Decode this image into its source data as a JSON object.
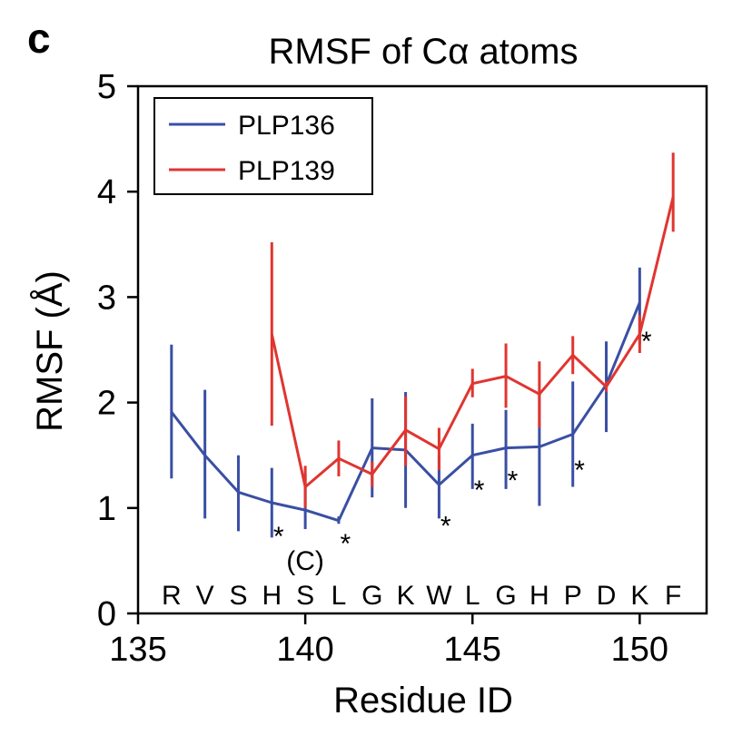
{
  "panel_label": "c",
  "chart_data": {
    "type": "line",
    "title": "RMSF of Cα atoms",
    "xlabel": "Residue ID",
    "ylabel": "RMSF (Å)",
    "xlim": [
      135,
      152
    ],
    "ylim": [
      0,
      5
    ],
    "x_ticks": [
      135,
      140,
      145,
      150
    ],
    "y_ticks": [
      0,
      1,
      2,
      3,
      4,
      5
    ],
    "grid": false,
    "legend_position": "top-left",
    "residues": [
      {
        "x": 136,
        "label": "R"
      },
      {
        "x": 137,
        "label": "V"
      },
      {
        "x": 138,
        "label": "S"
      },
      {
        "x": 139,
        "label": "H"
      },
      {
        "x": 140,
        "label": "S"
      },
      {
        "x": 141,
        "label": "L"
      },
      {
        "x": 142,
        "label": "G"
      },
      {
        "x": 143,
        "label": "K"
      },
      {
        "x": 144,
        "label": "W"
      },
      {
        "x": 145,
        "label": "L"
      },
      {
        "x": 146,
        "label": "G"
      },
      {
        "x": 147,
        "label": "H"
      },
      {
        "x": 148,
        "label": "P"
      },
      {
        "x": 149,
        "label": "D"
      },
      {
        "x": 150,
        "label": "K"
      },
      {
        "x": 151,
        "label": "F"
      }
    ],
    "residue_annotation": {
      "x": 140,
      "text": "(C)"
    },
    "series": [
      {
        "name": "PLP136",
        "color": "#3a4fa3",
        "x": [
          136,
          137,
          138,
          139,
          140,
          141,
          142,
          143,
          144,
          145,
          146,
          147,
          148,
          149,
          150
        ],
        "y": [
          1.91,
          1.5,
          1.15,
          1.05,
          0.98,
          0.88,
          1.57,
          1.55,
          1.22,
          1.5,
          1.57,
          1.58,
          1.7,
          2.17,
          2.95
        ],
        "err_low": [
          1.28,
          0.9,
          0.78,
          0.72,
          0.8,
          0.85,
          1.1,
          1.0,
          0.9,
          1.18,
          1.18,
          1.02,
          1.2,
          1.72,
          2.55
        ],
        "err_high": [
          2.55,
          2.12,
          1.5,
          1.38,
          1.32,
          0.92,
          2.04,
          2.1,
          1.5,
          1.8,
          1.93,
          2.1,
          2.2,
          2.58,
          3.28
        ]
      },
      {
        "name": "PLP139",
        "color": "#e03530",
        "x": [
          139,
          140,
          141,
          142,
          143,
          144,
          145,
          146,
          147,
          148,
          149,
          150,
          151
        ],
        "y": [
          2.65,
          1.2,
          1.47,
          1.32,
          1.74,
          1.56,
          2.18,
          2.25,
          2.08,
          2.45,
          2.15,
          2.65,
          3.95
        ],
        "err_low": [
          1.78,
          1.0,
          1.3,
          1.2,
          1.4,
          1.36,
          2.05,
          1.95,
          1.76,
          2.27,
          2.1,
          2.47,
          3.62
        ],
        "err_high": [
          3.52,
          1.4,
          1.64,
          1.44,
          2.06,
          1.76,
          2.32,
          2.56,
          2.39,
          2.63,
          2.2,
          2.83,
          4.37
        ]
      }
    ],
    "annotations": [
      {
        "x": 139.2,
        "y": 0.8,
        "text": "*"
      },
      {
        "x": 141.2,
        "y": 0.73,
        "text": "*"
      },
      {
        "x": 144.2,
        "y": 0.9,
        "text": "*"
      },
      {
        "x": 145.2,
        "y": 1.24,
        "text": "*"
      },
      {
        "x": 146.2,
        "y": 1.33,
        "text": "*"
      },
      {
        "x": 148.2,
        "y": 1.43,
        "text": "*"
      },
      {
        "x": 150.2,
        "y": 2.65,
        "text": "*"
      }
    ]
  }
}
